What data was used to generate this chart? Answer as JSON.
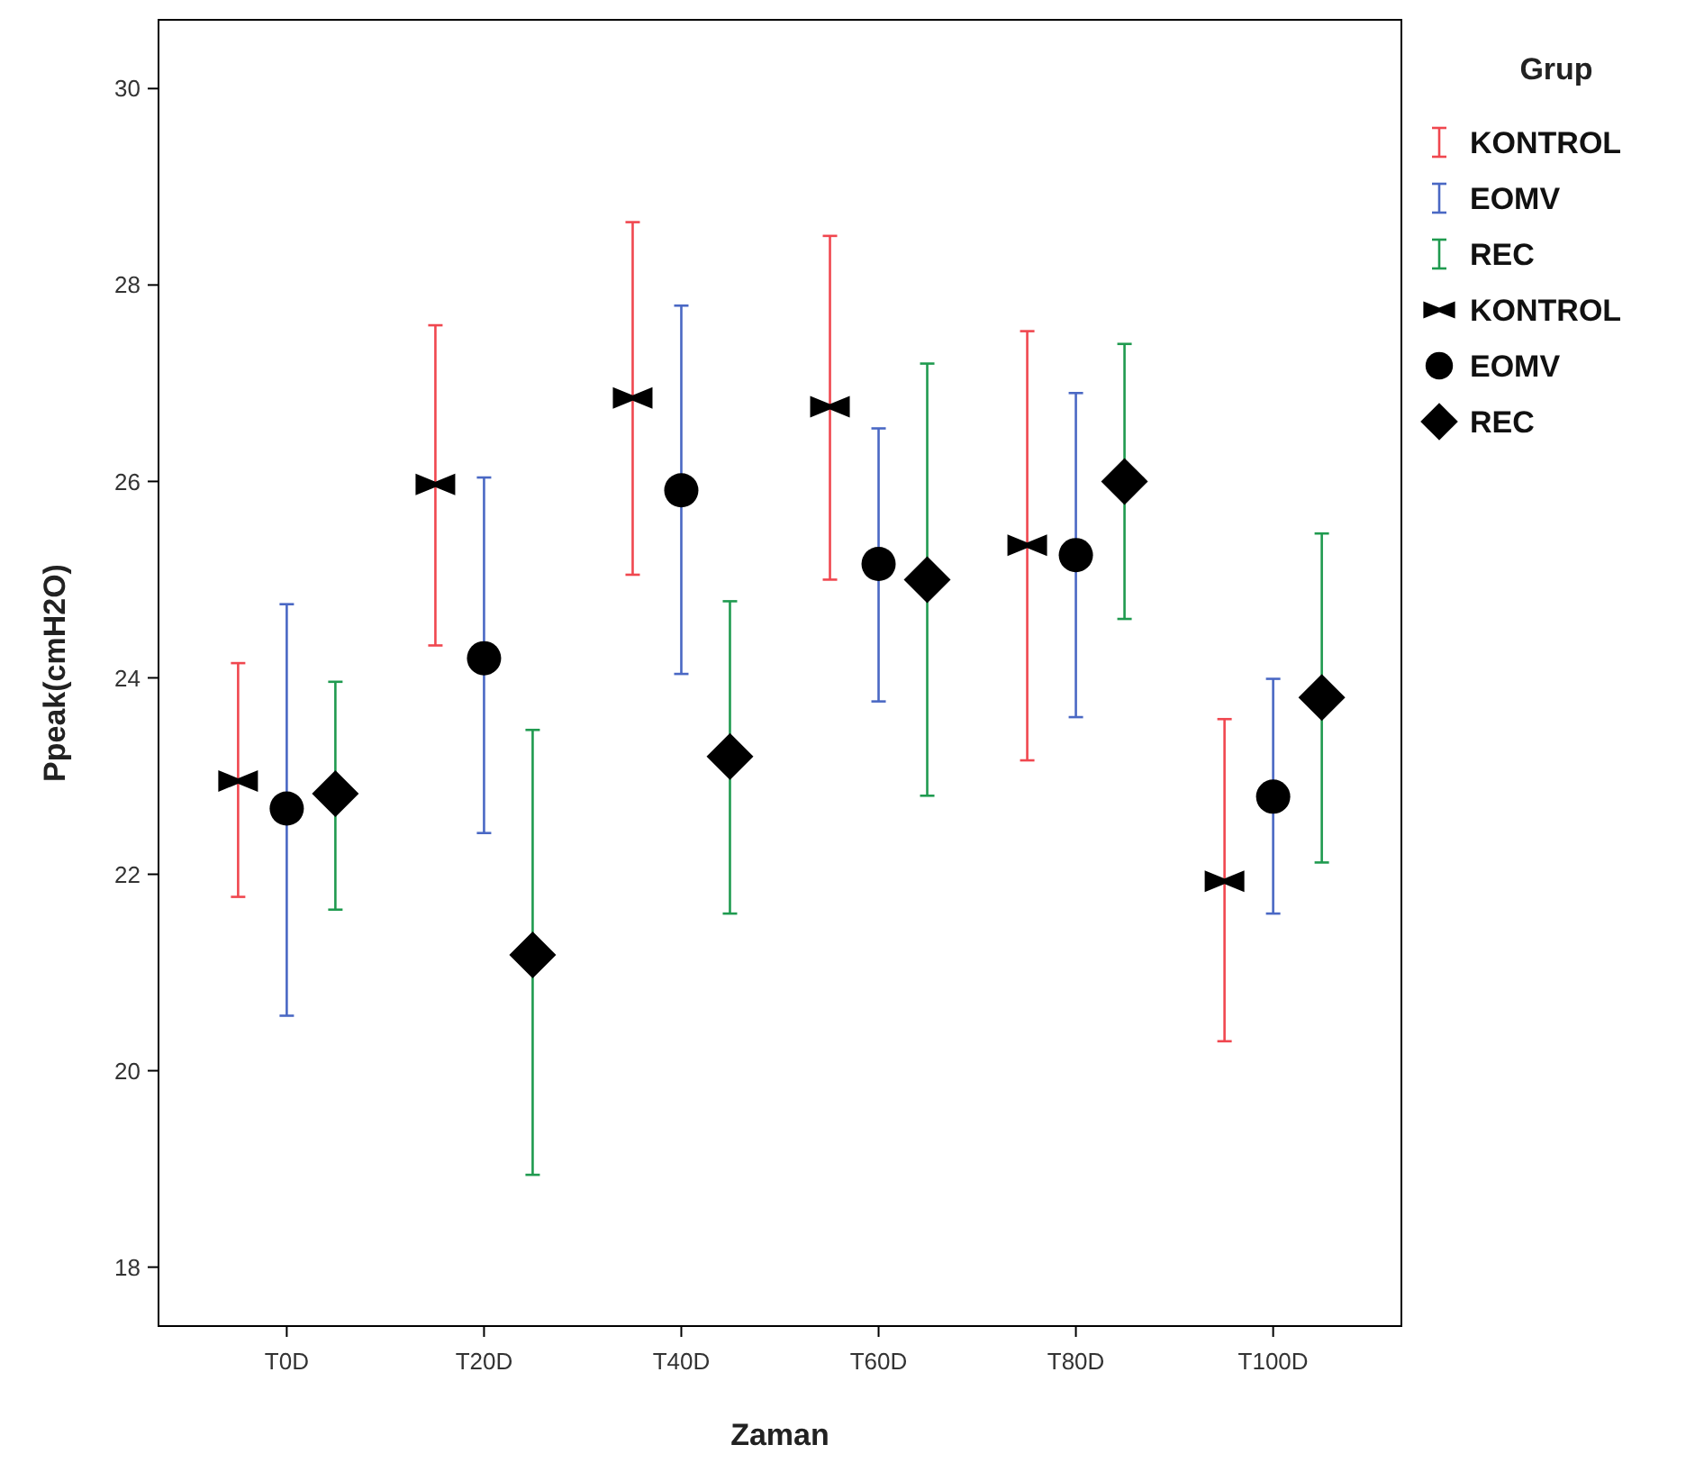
{
  "chart_data": {
    "type": "scatter",
    "xlabel": "Zaman",
    "ylabel": "Ppeak(cmH2O)",
    "legend_title": "Grup",
    "legend": "right",
    "grid": false,
    "categories": [
      "T0D",
      "T20D",
      "T40D",
      "T60D",
      "T80D",
      "T100D"
    ],
    "ylim": [
      17.4,
      30.7
    ],
    "yticks": [
      18,
      20,
      22,
      24,
      26,
      28,
      30
    ],
    "series": [
      {
        "name": "KONTROL",
        "color": "#f0474f",
        "colors": [
          "#000000",
          "#000000",
          "#000000",
          "#000000",
          "#000000",
          "#000000"
        ],
        "values": [
          22.95,
          25.97,
          26.85,
          26.76,
          25.35,
          21.93
        ],
        "errors": [
          [
            21.77,
            24.15
          ],
          [
            24.33,
            27.59
          ],
          [
            25.05,
            28.64
          ],
          [
            25.0,
            28.5
          ],
          [
            23.16,
            27.53
          ],
          [
            20.3,
            23.58
          ]
        ]
      },
      {
        "name": "EOMV",
        "color": "#4a68c4",
        "marker": "circle",
        "colors": [
          "#000000",
          "#000000",
          "#000000",
          "#000000",
          "#000000",
          "#000000"
        ],
        "values": [
          22.67,
          24.2,
          25.91,
          25.16,
          25.25,
          22.79
        ],
        "errors": [
          [
            20.56,
            24.75
          ],
          [
            22.42,
            26.04
          ],
          [
            24.04,
            27.79
          ],
          [
            23.76,
            26.54
          ],
          [
            23.6,
            26.9
          ],
          [
            21.6,
            23.99
          ]
        ]
      },
      {
        "name": "REC",
        "color": "#1f9a4f",
        "marker": "diamond",
        "colors": [
          "#000000",
          "#000000",
          "#000000",
          "#000000",
          "#000000",
          "#000000"
        ],
        "values": [
          22.82,
          21.18,
          23.2,
          25.0,
          26.0,
          23.8
        ],
        "errors": [
          [
            21.64,
            23.96
          ],
          [
            18.94,
            23.47
          ],
          [
            21.6,
            24.78
          ],
          [
            22.8,
            27.2
          ],
          [
            24.6,
            27.4
          ],
          [
            22.12,
            25.47
          ]
        ]
      }
    ]
  }
}
